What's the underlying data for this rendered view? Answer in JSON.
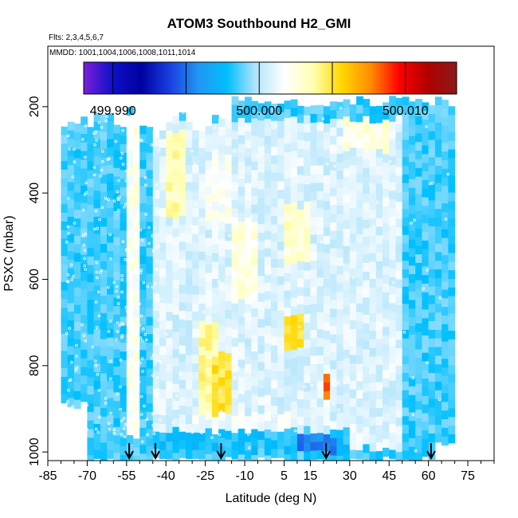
{
  "chart_data": {
    "type": "heatmap",
    "title": "ATOM3 Southbound H2_GMI",
    "subtitle_lines": [
      "Flts: 2,3,4,5,6,7",
      "MMDD: 1001,1004,1006,1008,1011,1014"
    ],
    "xlabel": "Latitude (deg N)",
    "ylabel": "PSXC (mbar)",
    "xlim": [
      -85,
      85
    ],
    "ylim": [
      1020,
      60
    ],
    "x_ticks": [
      -85,
      -70,
      -55,
      -40,
      -25,
      -10,
      5,
      15,
      30,
      45,
      60,
      75
    ],
    "y_ticks": [
      200,
      400,
      600,
      800,
      1000
    ],
    "colorbar": {
      "range": [
        499.988,
        500.0135
      ],
      "ticks": [
        499.99,
        500.0,
        500.01
      ],
      "tick_labels": [
        "499.990",
        "500.000",
        "500.010"
      ],
      "colors": [
        "#7b1fd9",
        "#1010c8",
        "#0000a0",
        "#1a3fe0",
        "#2196f3",
        "#00bfff",
        "#b3e5fc",
        "#ffffff",
        "#ffffb0",
        "#ffd700",
        "#ff8c00",
        "#ff0000",
        "#b00000",
        "#8b1a1a"
      ]
    },
    "data_extent": {
      "lat_min": -80,
      "lat_max": 70,
      "p_min": 170,
      "p_max": 1010
    },
    "background_value": 499.9985,
    "features": [
      {
        "lat": [
          -45,
          50
        ],
        "p": [
          230,
          990
        ],
        "value": 500.0008
      },
      {
        "lat": [
          -40,
          -32
        ],
        "p": [
          260,
          460
        ],
        "value": 500.0035
      },
      {
        "lat": [
          -28,
          -20
        ],
        "p": [
          700,
          970
        ],
        "value": 500.004
      },
      {
        "lat": [
          -22,
          -16
        ],
        "p": [
          770,
          930
        ],
        "value": 500.005
      },
      {
        "lat": [
          20,
          23
        ],
        "p": [
          820,
          880
        ],
        "value": 500.008
      },
      {
        "lat": [
          5,
          15
        ],
        "p": [
          430,
          560
        ],
        "value": 500.003
      },
      {
        "lat": [
          6,
          12
        ],
        "p": [
          680,
          760
        ],
        "value": 500.005
      },
      {
        "lat": [
          28,
          45
        ],
        "p": [
          230,
          300
        ],
        "value": 500.0025
      },
      {
        "lat": [
          -14,
          -6
        ],
        "p": [
          460,
          650
        ],
        "value": 500.0025
      },
      {
        "lat": [
          -30,
          10
        ],
        "p": [
          910,
          950
        ],
        "value": 500.0015
      },
      {
        "lat": [
          -50,
          30
        ],
        "p": [
          950,
          1000
        ],
        "value": 499.998
      },
      {
        "lat": [
          10,
          25
        ],
        "p": [
          960,
          1000
        ],
        "value": 499.9955
      },
      {
        "lat": [
          -55,
          -50
        ],
        "p": [
          220,
          970
        ],
        "value": 500.002
      },
      {
        "lat": [
          -25,
          -15
        ],
        "p": [
          320,
          480
        ],
        "value": 500.002
      }
    ],
    "arrow_lats": [
      -54,
      -44,
      -19,
      21,
      61
    ]
  }
}
